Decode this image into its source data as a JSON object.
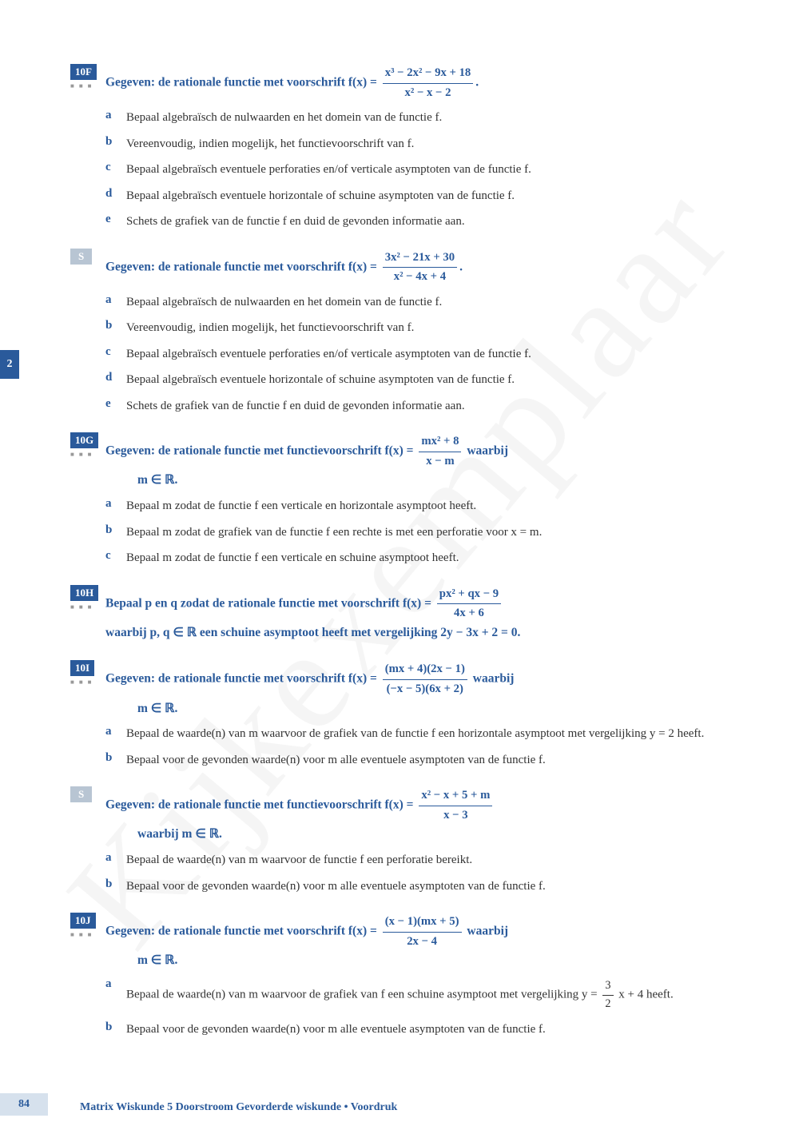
{
  "page": {
    "number": "84",
    "tab": "2",
    "footer": "Matrix Wiskunde 5 Doorstroom Gevorderde wiskunde • Voordruk",
    "watermark": "Kijkexemplaar"
  },
  "colors": {
    "primary": "#2a5a9b",
    "badge_bg": "#2a5a9b",
    "badge_s_bg": "#b8c5d3",
    "text": "#333333",
    "page_bg": "#d6e1ed"
  },
  "exercises": [
    {
      "id": "10F",
      "badge_type": "main",
      "prompt_pre": "Gegeven: de rationale functie met voorschrift f(x) = ",
      "frac_num": "x³ − 2x² − 9x + 18",
      "frac_den": "x² − x − 2",
      "prompt_post": ".",
      "prompt_line2": "",
      "items": [
        {
          "l": "a",
          "t": "Bepaal algebraïsch de nulwaarden en het domein van de functie f."
        },
        {
          "l": "b",
          "t": "Vereenvoudig, indien mogelijk, het functievoorschrift van f."
        },
        {
          "l": "c",
          "t": "Bepaal algebraïsch eventuele perforaties en/of verticale asymptoten van de functie f."
        },
        {
          "l": "d",
          "t": "Bepaal algebraïsch eventuele horizontale of schuine asymptoten van de functie f."
        },
        {
          "l": "e",
          "t": "Schets de grafiek van de functie f en duid de gevonden informatie aan."
        }
      ]
    },
    {
      "id": "S",
      "badge_type": "s",
      "prompt_pre": "Gegeven: de rationale functie met voorschrift f(x) = ",
      "frac_num": "3x² − 21x + 30",
      "frac_den": "x² − 4x + 4",
      "prompt_post": ".",
      "prompt_line2": "",
      "items": [
        {
          "l": "a",
          "t": "Bepaal algebraïsch de nulwaarden en het domein van de functie f."
        },
        {
          "l": "b",
          "t": "Vereenvoudig, indien mogelijk, het functievoorschrift van f."
        },
        {
          "l": "c",
          "t": "Bepaal algebraïsch eventuele perforaties en/of verticale asymptoten van de functie f."
        },
        {
          "l": "d",
          "t": "Bepaal algebraïsch eventuele horizontale of schuine asymptoten van de functie f."
        },
        {
          "l": "e",
          "t": "Schets de grafiek van de functie f en duid de gevonden informatie aan."
        }
      ]
    },
    {
      "id": "10G",
      "badge_type": "main",
      "prompt_pre": "Gegeven: de rationale functie met functievoorschrift f(x) = ",
      "frac_num": "mx² + 8",
      "frac_den": "x − m",
      "prompt_post": " waarbij",
      "prompt_line2": "m ∈ ℝ.",
      "items": [
        {
          "l": "a",
          "t": "Bepaal m zodat de functie f een verticale en horizontale asymptoot heeft."
        },
        {
          "l": "b",
          "t": "Bepaal m zodat de grafiek van de functie f een rechte is met een perforatie voor x = m."
        },
        {
          "l": "c",
          "t": "Bepaal m zodat de functie f een verticale en schuine asymptoot heeft."
        }
      ]
    },
    {
      "id": "10H",
      "badge_type": "main",
      "prompt_pre": "Bepaal p en q zodat de rationale functie met voorschrift f(x) = ",
      "frac_num": "px² + qx − 9",
      "frac_den": "4x + 6",
      "prompt_post": "",
      "prompt_line2_full": "waarbij p, q ∈ ℝ een schuine asymptoot heeft met vergelijking 2y − 3x + 2 = 0.",
      "items": []
    },
    {
      "id": "10I",
      "badge_type": "main",
      "prompt_pre": "Gegeven: de rationale functie met voorschrift f(x) = ",
      "frac_num": "(mx + 4)(2x − 1)",
      "frac_den": "(−x − 5)(6x + 2)",
      "prompt_post": " waarbij",
      "prompt_line2": "m ∈ ℝ.",
      "items": [
        {
          "l": "a",
          "t": "Bepaal de waarde(n) van m waarvoor de grafiek van de functie f een horizontale asymptoot met vergelijking y = 2 heeft."
        },
        {
          "l": "b",
          "t": "Bepaal voor de gevonden waarde(n) voor m alle eventuele asymptoten van de functie f."
        }
      ]
    },
    {
      "id": "S",
      "badge_type": "s",
      "prompt_pre": "Gegeven: de rationale functie met functievoorschrift f(x) = ",
      "frac_num": "x² − x + 5 + m",
      "frac_den": "x − 3",
      "prompt_post": "",
      "prompt_line2": "waarbij m ∈ ℝ.",
      "items": [
        {
          "l": "a",
          "t": "Bepaal de waarde(n) van m waarvoor de functie f een perforatie bereikt."
        },
        {
          "l": "b",
          "t": "Bepaal voor de gevonden waarde(n) voor m alle eventuele asymptoten van de functie f."
        }
      ]
    },
    {
      "id": "10J",
      "badge_type": "main",
      "prompt_pre": "Gegeven: de rationale functie met voorschrift f(x) = ",
      "frac_num": "(x − 1)(mx + 5)",
      "frac_den": "2x − 4",
      "prompt_post": " waarbij",
      "prompt_line2": "m ∈ ℝ.",
      "items": [
        {
          "l": "a",
          "t_html": "Bepaal de waarde(n) van m waarvoor de grafiek van f een schuine asymptoot met vergelijking y = <span class='frac'><span class='num'>3</span><span class='den'>2</span></span> x + 4 heeft."
        },
        {
          "l": "b",
          "t": "Bepaal voor de gevonden waarde(n) voor m alle eventuele asymptoten van de functie f."
        }
      ]
    }
  ]
}
